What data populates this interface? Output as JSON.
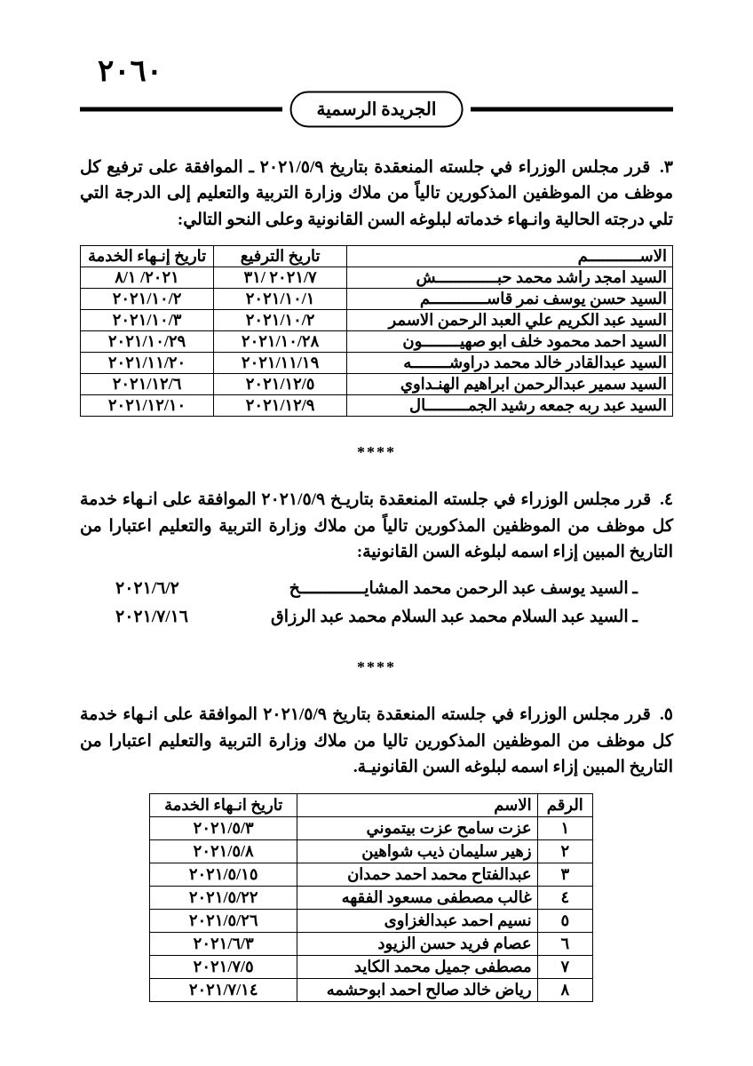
{
  "page_number": "٢٠٦٠",
  "gazette_label": "الجريدة الرسمية",
  "separator_glyph": "****",
  "section3": {
    "number": "٣.",
    "text": "قرر مجلس الوزراء في جلسته المنعقدة بتاريخ ٢٠٢١/٥/٩ ـ الموافقة على ترفيع كل موظف من الموظفين المذكورين تالياً من ملاك وزارة التربية والتعليم إلى الدرجة التي تلي درجته الحالية وانـهاء خدماته لبلوغه السن القانونية وعلى النحو التالي:",
    "headers": {
      "name": "الاســـــــــــم",
      "promo": "تاريخ الترفيع",
      "end": "تاريخ إنـهاء الخدمة"
    },
    "rows": [
      {
        "name": "السيد امجد راشد محمد حبـــــــــــــش",
        "promo": "٢٠٢١/٧ /٣١",
        "end": "٢٠٢١/ ٨/١"
      },
      {
        "name": "السيد حسن يوسف نمر قاســــــــــــم",
        "promo": "٢٠٢١/١٠/١",
        "end": "٢٠٢١/١٠/٢"
      },
      {
        "name": "السيد عبد الكريم علي العبد الرحمن الاسمر",
        "promo": "٢٠٢١/١٠/٢",
        "end": "٢٠٢١/١٠/٣"
      },
      {
        "name": "السيد احمد محمود خلف ابو صهيــــــــون",
        "promo": "٢٠٢١/١٠/٢٨",
        "end": "٢٠٢١/١٠/٢٩"
      },
      {
        "name": "السيد عبدالقادر خالد محمد دراوشــــــــه",
        "promo": "٢٠٢١/١١/١٩",
        "end": "٢٠٢١/١١/٢٠"
      },
      {
        "name": "السيد سمير عبدالرحمن ابراهيم الهنـداوي",
        "promo": "٢٠٢١/١٢/٥",
        "end": "٢٠٢١/١٢/٦"
      },
      {
        "name": "السيد عبد ربه جمعه رشيد الجمـــــــــال",
        "promo": "٢٠٢١/١٢/٩",
        "end": "٢٠٢١/١٢/١٠"
      }
    ]
  },
  "section4": {
    "number": "٤.",
    "text": "قرر مجلس الوزراء في جلسته المنعقدة بتاريـخ ٢٠٢١/٥/٩ الموافقة على انـهاء خدمة كل موظف من الموظفين المذكورين تالياً من ملاك وزارة التربية والتعليم اعتبارا من التاريخ المبين إزاء اسمه لبلوغه السن القانونية:",
    "rows": [
      {
        "name": "ـ السيد يوسف عبد الرحمن محمد المشايـــــــــــــخ",
        "date": "٢٠٢١/٦/٢"
      },
      {
        "name": "ـ السيد عبد السلام محمد عبد السلام محمد عبد الرزاق",
        "date": "٢٠٢١/٧/١٦"
      }
    ]
  },
  "section5": {
    "number": "٥.",
    "text": "قرر مجلس الوزراء في جلسته المنعقدة بتاريخ ٢٠٢١/٥/٩ الموافقة على انـهاء خدمة كل موظف من الموظفين المذكورين تاليا من ملاك وزارة التربية والتعليم اعتبارا من التاريخ المبين إزاء اسمه لبلوغه السن القانونيـة.",
    "headers": {
      "num": "الرقم",
      "name": "الاسم",
      "end": "تاريخ انـهاء الخدمة"
    },
    "rows": [
      {
        "num": "١",
        "name": "عزت سامح عزت بيتموني",
        "end": "٢٠٢١/٥/٣"
      },
      {
        "num": "٢",
        "name": "زهير سليمان ذيب شواهين",
        "end": "٢٠٢١/٥/٨"
      },
      {
        "num": "٣",
        "name": "عبدالفتاح محمد احمد حمدان",
        "end": "٢٠٢١/٥/١٥"
      },
      {
        "num": "٤",
        "name": "غالب مصطفى مسعود الفقهه",
        "end": "٢٠٢١/٥/٢٢"
      },
      {
        "num": "٥",
        "name": "نسيم احمد عبدالغزاوى",
        "end": "٢٠٢١/٥/٢٦"
      },
      {
        "num": "٦",
        "name": "عصام فريد حسن الزيود",
        "end": "٢٠٢١/٦/٣"
      },
      {
        "num": "٧",
        "name": "مصطفى جميل محمد الكايد",
        "end": "٢٠٢١/٧/٥"
      },
      {
        "num": "٨",
        "name": "رياض خالد صالح احمد ابوحشمه",
        "end": "٢٠٢١/٧/١٤"
      }
    ]
  }
}
